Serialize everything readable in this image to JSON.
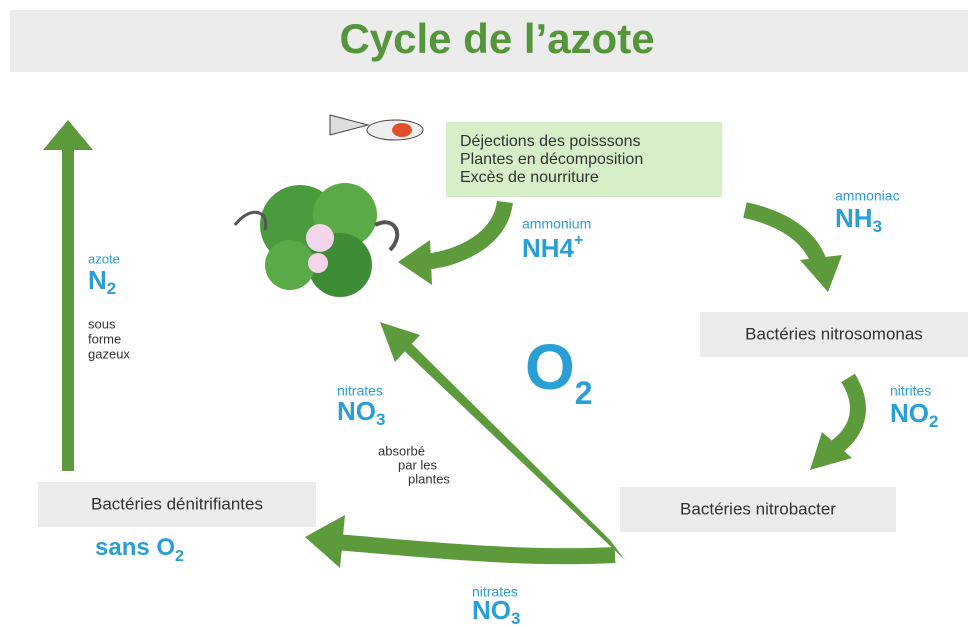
{
  "title": "Cycle de l’azote",
  "source_box": {
    "lines": [
      "Déjections des poisssons",
      "Plantes en décomposition",
      "Excès de nourriture"
    ]
  },
  "ammonium": {
    "name": "ammonium",
    "symbol": "NH4",
    "charge": "+"
  },
  "ammoniac": {
    "name": "ammoniac",
    "symbol": "NH",
    "subscript": "3"
  },
  "nitrites": {
    "name": "nitrites",
    "symbol": "NO",
    "subscript": "2"
  },
  "nitrates_absorbed": {
    "name": "nitrates",
    "symbol": "NO",
    "subscript": "3",
    "note_lines": [
      "absorbé",
      "par les",
      "plantes"
    ]
  },
  "nitrates_bottom": {
    "name": "nitrates",
    "symbol": "NO",
    "subscript": "3"
  },
  "oxygen": {
    "symbol": "O",
    "subscript": "2"
  },
  "nitrogen": {
    "name": "azote",
    "symbol": "N",
    "subscript": "2",
    "note_lines": [
      "sous",
      "forme",
      "gazeux"
    ]
  },
  "bacteria": {
    "nitrosomonas": "Bactéries nitrosomonas",
    "nitrobacter": "Bactéries nitrobacter",
    "denitrifying": "Bactéries dénitrifiantes"
  },
  "anoxic": {
    "label": "sans O",
    "subscript": "2"
  }
}
